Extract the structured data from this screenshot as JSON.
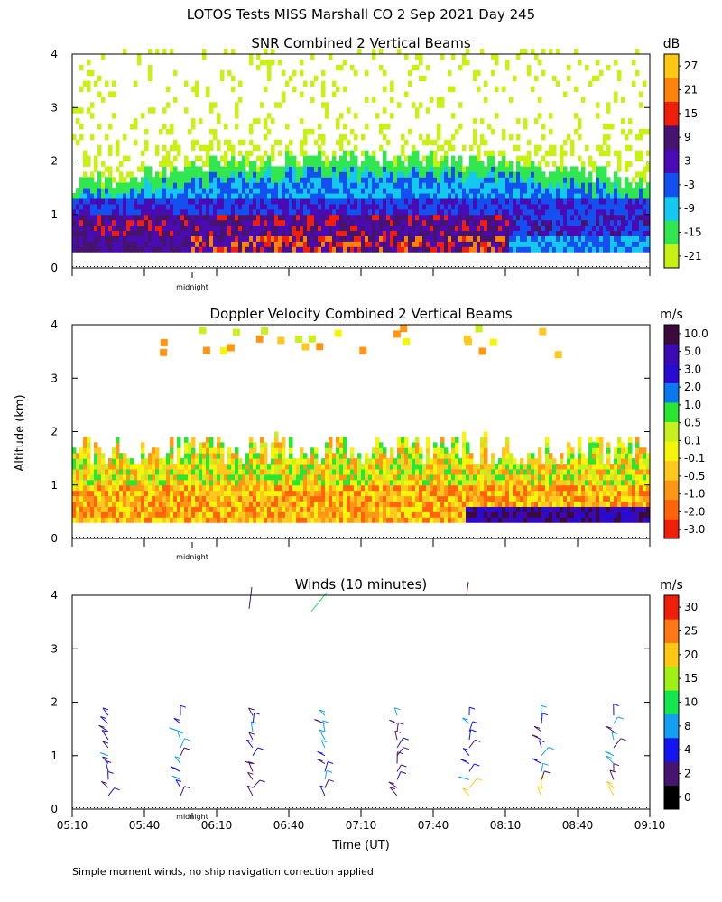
{
  "title": "LOTOS Tests MISS Marshall CO    2 Sep 2021 Day 245",
  "ylabel": "Altitude (km)",
  "xlabel": "Time (UT)",
  "footnote": "Simple moment winds, no ship navigation correction applied",
  "midnight_label": "midnight",
  "x_ticks": [
    "05:10",
    "05:40",
    "06:10",
    "06:40",
    "07:10",
    "07:40",
    "08:10",
    "08:40",
    "09:10"
  ],
  "colors": {
    "snr": [
      "#c8f014",
      "#32e650",
      "#14c8f0",
      "#1450f0",
      "#4a0ab4",
      "#46146e",
      "#f01e0a",
      "#ff820a",
      "#ffc814"
    ],
    "velocity": [
      "#f01e0a",
      "#ff640a",
      "#ff9614",
      "#ffc81e",
      "#f5f50a",
      "#c8f01e",
      "#28e632",
      "#0a78f0",
      "#280ad2",
      "#3c0ab4",
      "#3c0a3c"
    ],
    "winds": [
      "#000000",
      "#46146e",
      "#1414f0",
      "#14a0f0",
      "#14e650",
      "#a0f014",
      "#ffc814",
      "#ff7814",
      "#f01e0a"
    ]
  },
  "chart_data": [
    {
      "type": "heatmap",
      "title": "SNR Combined 2 Vertical Beams",
      "units": "dB",
      "ylim": [
        0,
        4
      ],
      "yticks": [
        "0",
        "1",
        "2",
        "3",
        "4"
      ],
      "colorbar_ticks": [
        "-21",
        "-15",
        "-9",
        "-3",
        "3",
        "9",
        "15",
        "21",
        "27"
      ],
      "altitude_km": [
        0.3,
        0.5,
        0.7,
        0.9,
        1.1,
        1.3,
        1.5,
        1.7,
        1.9,
        2.1,
        2.5,
        3.0,
        3.5,
        3.9
      ],
      "profile_db": [
        15,
        9,
        9,
        9,
        3,
        -3,
        -9,
        -15,
        -21,
        -21,
        -21,
        -21,
        -21,
        -21
      ]
    },
    {
      "type": "heatmap",
      "title": "Doppler Velocity Combined 2 Vertical Beams",
      "units": "m/s",
      "ylim": [
        0,
        4
      ],
      "yticks": [
        "0",
        "1",
        "2",
        "3",
        "4"
      ],
      "colorbar_ticks": [
        "-3.0",
        "-2.0",
        "-1.0",
        "-0.5",
        "-0.1",
        "0.1",
        "0.5",
        "1.0",
        "2.0",
        "3.0",
        "5.0",
        "10.0"
      ],
      "altitude_km": [
        0.3,
        0.5,
        0.7,
        0.9,
        1.1,
        1.3,
        1.5,
        1.7,
        1.9
      ],
      "profile_ms": [
        -1.0,
        -1.0,
        -1.0,
        -0.5,
        -0.5,
        -0.1,
        0.1,
        0.5,
        0.1
      ]
    },
    {
      "type": "scatter",
      "title": "Winds (10 minutes)",
      "units": "m/s",
      "ylim": [
        0,
        4
      ],
      "yticks": [
        "0",
        "1",
        "2",
        "3",
        "4"
      ],
      "colorbar_ticks": [
        "0",
        "2",
        "4",
        "8",
        "10",
        "15",
        "20",
        "25",
        "30"
      ],
      "profile_times": [
        "05:25",
        "05:55",
        "06:25",
        "06:55",
        "07:25",
        "07:55",
        "08:25",
        "08:55"
      ],
      "altitude_km": [
        0.2,
        0.4,
        0.6,
        0.8,
        1.0,
        1.2,
        1.4,
        1.6,
        1.8
      ]
    }
  ]
}
